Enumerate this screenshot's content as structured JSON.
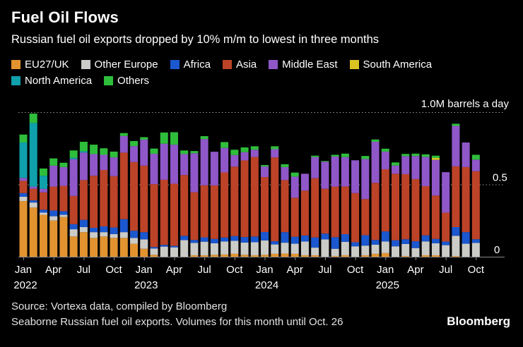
{
  "header": {
    "title": "Fuel Oil Flows",
    "subtitle": "Russian fuel oil exports dropped by 10% m/m to lowest in three months"
  },
  "chart_data": {
    "type": "bar",
    "stacked": true,
    "title": "Fuel Oil Flows",
    "ylabel": "M barrels a day",
    "ylim": [
      0,
      1.05
    ],
    "background": "#000000",
    "gridlines": [
      {
        "value": 1.0,
        "label": "1.0M barrels a day"
      },
      {
        "value": 0.5,
        "label": "0.5"
      },
      {
        "value": 0.0,
        "label": "0"
      }
    ],
    "x": [
      "2022-01",
      "2022-02",
      "2022-03",
      "2022-04",
      "2022-05",
      "2022-06",
      "2022-07",
      "2022-08",
      "2022-09",
      "2022-10",
      "2022-11",
      "2022-12",
      "2023-01",
      "2023-02",
      "2023-03",
      "2023-04",
      "2023-05",
      "2023-06",
      "2023-07",
      "2023-08",
      "2023-09",
      "2023-10",
      "2023-11",
      "2023-12",
      "2024-01",
      "2024-02",
      "2024-03",
      "2024-04",
      "2024-05",
      "2024-06",
      "2024-07",
      "2024-08",
      "2024-09",
      "2024-10",
      "2024-11",
      "2024-12",
      "2025-01",
      "2025-02",
      "2025-03",
      "2025-04",
      "2025-05",
      "2025-06",
      "2025-07",
      "2025-08",
      "2025-09",
      "2025-10"
    ],
    "ticks": [
      {
        "index": 0,
        "label": "Jan",
        "year": "2022"
      },
      {
        "index": 3,
        "label": "Apr"
      },
      {
        "index": 6,
        "label": "Jul"
      },
      {
        "index": 9,
        "label": "Oct"
      },
      {
        "index": 12,
        "label": "Jan",
        "year": "2023"
      },
      {
        "index": 15,
        "label": "Apr"
      },
      {
        "index": 18,
        "label": "Jul"
      },
      {
        "index": 21,
        "label": "Oct"
      },
      {
        "index": 24,
        "label": "Jan",
        "year": "2024"
      },
      {
        "index": 27,
        "label": "Apr"
      },
      {
        "index": 30,
        "label": "Jul"
      },
      {
        "index": 33,
        "label": "Oct"
      },
      {
        "index": 36,
        "label": "Jan",
        "year": "2025"
      },
      {
        "index": 39,
        "label": "Apr"
      },
      {
        "index": 42,
        "label": "Jul"
      },
      {
        "index": 45,
        "label": "Oct"
      }
    ],
    "legend_rows": [
      [
        0,
        1,
        2,
        3,
        4,
        5
      ],
      [
        6,
        7
      ]
    ],
    "series": [
      {
        "name": "EU27/UK",
        "color": "#E2932F",
        "values": [
          0.385,
          0.34,
          0.29,
          0.25,
          0.275,
          0.14,
          0.17,
          0.13,
          0.14,
          0.13,
          0.13,
          0.09,
          0.055,
          0.013,
          0,
          0,
          0,
          0.01,
          0.01,
          0.013,
          0.015,
          0.02,
          0.013,
          0.01,
          0.013,
          0.02,
          0.022,
          0.02,
          0.01,
          0.01,
          0,
          0.005,
          0.01,
          0,
          0.01,
          0.02,
          0.025,
          0,
          0.005,
          0,
          0.01,
          0.01,
          0,
          0.005,
          0,
          0
        ]
      },
      {
        "name": "Other Europe",
        "color": "#CBCBC8",
        "values": [
          0.03,
          0.035,
          0.015,
          0.03,
          0.015,
          0.05,
          0.035,
          0.04,
          0.03,
          0.027,
          0.04,
          0.04,
          0.065,
          0.044,
          0.07,
          0.065,
          0.115,
          0.086,
          0.094,
          0.08,
          0.09,
          0.09,
          0.085,
          0.09,
          0.1,
          0.065,
          0.075,
          0.07,
          0.095,
          0.053,
          0.12,
          0.05,
          0.093,
          0.072,
          0.067,
          0.063,
          0.08,
          0.072,
          0.083,
          0.06,
          0.096,
          0.083,
          0.08,
          0.14,
          0.09,
          0.096
        ]
      },
      {
        "name": "Africa",
        "color": "#1B57CE",
        "values": [
          0.025,
          0.015,
          0.02,
          0.04,
          0.025,
          0.035,
          0.05,
          0.03,
          0.04,
          0.045,
          0.09,
          0.05,
          0.05,
          0.01,
          0.012,
          0.01,
          0.03,
          0.02,
          0.03,
          0.03,
          0.028,
          0.033,
          0.038,
          0.04,
          0.058,
          0.022,
          0.073,
          0.048,
          0.042,
          0.07,
          0.04,
          0.08,
          0.053,
          0.028,
          0.072,
          0.033,
          0.07,
          0.042,
          0.033,
          0.047,
          0.042,
          0.03,
          0.025,
          0.06,
          0.08,
          0.025
        ]
      },
      {
        "name": "Asia",
        "color": "#BC4327",
        "values": [
          0.085,
          0.08,
          0.12,
          0.165,
          0.175,
          0.195,
          0.275,
          0.36,
          0.39,
          0.355,
          0.46,
          0.475,
          0.46,
          0.435,
          0.45,
          0.43,
          0.42,
          0.33,
          0.36,
          0.37,
          0.45,
          0.48,
          0.53,
          0.55,
          0.38,
          0.58,
          0.36,
          0.27,
          0.31,
          0.41,
          0.31,
          0.35,
          0.33,
          0.34,
          0.25,
          0.395,
          0.43,
          0.46,
          0.45,
          0.43,
          0.34,
          0.3,
          0.2,
          0.42,
          0.45,
          0.47
        ]
      },
      {
        "name": "Middle East",
        "color": "#8F57C8",
        "values": [
          0.02,
          0.015,
          0.025,
          0.145,
          0.13,
          0.255,
          0.19,
          0.15,
          0.105,
          0.13,
          0.115,
          0.11,
          0.18,
          0.21,
          0.25,
          0.27,
          0.145,
          0.27,
          0.32,
          0.233,
          0.17,
          0.08,
          0.057,
          0.05,
          0.073,
          0.057,
          0.09,
          0.146,
          0.117,
          0.146,
          0.187,
          0.208,
          0.203,
          0.227,
          0.277,
          0.284,
          0.122,
          0.057,
          0.125,
          0.16,
          0.203,
          0.247,
          0.28,
          0.28,
          0.17,
          0.081
        ]
      },
      {
        "name": "South America",
        "color": "#D9C422",
        "values": [
          0,
          0,
          0,
          0,
          0,
          0,
          0,
          0,
          0,
          0,
          0,
          0,
          0,
          0,
          0,
          0,
          0,
          0,
          0,
          0,
          0,
          0,
          0,
          0,
          0,
          0,
          0,
          0,
          0,
          0,
          0,
          0,
          0,
          0,
          0,
          0,
          0,
          0,
          0,
          0,
          0,
          0.013,
          0,
          0,
          0,
          0
        ]
      },
      {
        "name": "North America",
        "color": "#0FA0AC",
        "values": [
          0.245,
          0.44,
          0.09,
          0,
          0,
          0.01,
          0.01,
          0,
          0,
          0,
          0,
          0,
          0,
          0,
          0,
          0,
          0,
          0,
          0,
          0,
          0,
          0,
          0,
          0,
          0,
          0,
          0,
          0,
          0,
          0,
          0,
          0,
          0,
          0,
          0,
          0,
          0,
          0,
          0,
          0,
          0,
          0,
          0,
          0,
          0,
          0
        ]
      },
      {
        "name": "Others",
        "color": "#2FBE3C",
        "values": [
          0.055,
          0.065,
          0.05,
          0.05,
          0.03,
          0.05,
          0.065,
          0.065,
          0.045,
          0.04,
          0.02,
          0.035,
          0.017,
          0.036,
          0.077,
          0.086,
          0.025,
          0.015,
          0.02,
          0,
          0.04,
          0.037,
          0.033,
          0.024,
          0.01,
          0.02,
          0.02,
          0.028,
          0,
          0.01,
          0.005,
          0.012,
          0.024,
          0,
          0.021,
          0.016,
          0.02,
          0.021,
          0.015,
          0.016,
          0.017,
          0.016,
          0,
          0.015,
          0,
          0.033
        ]
      }
    ]
  },
  "footer": {
    "source_line1": "Source: Vortexa data, compiled by Bloomberg",
    "source_line2": "Seaborne Russian fuel oil exports. Volumes for this month until Oct. 26",
    "brand": "Bloomberg"
  }
}
